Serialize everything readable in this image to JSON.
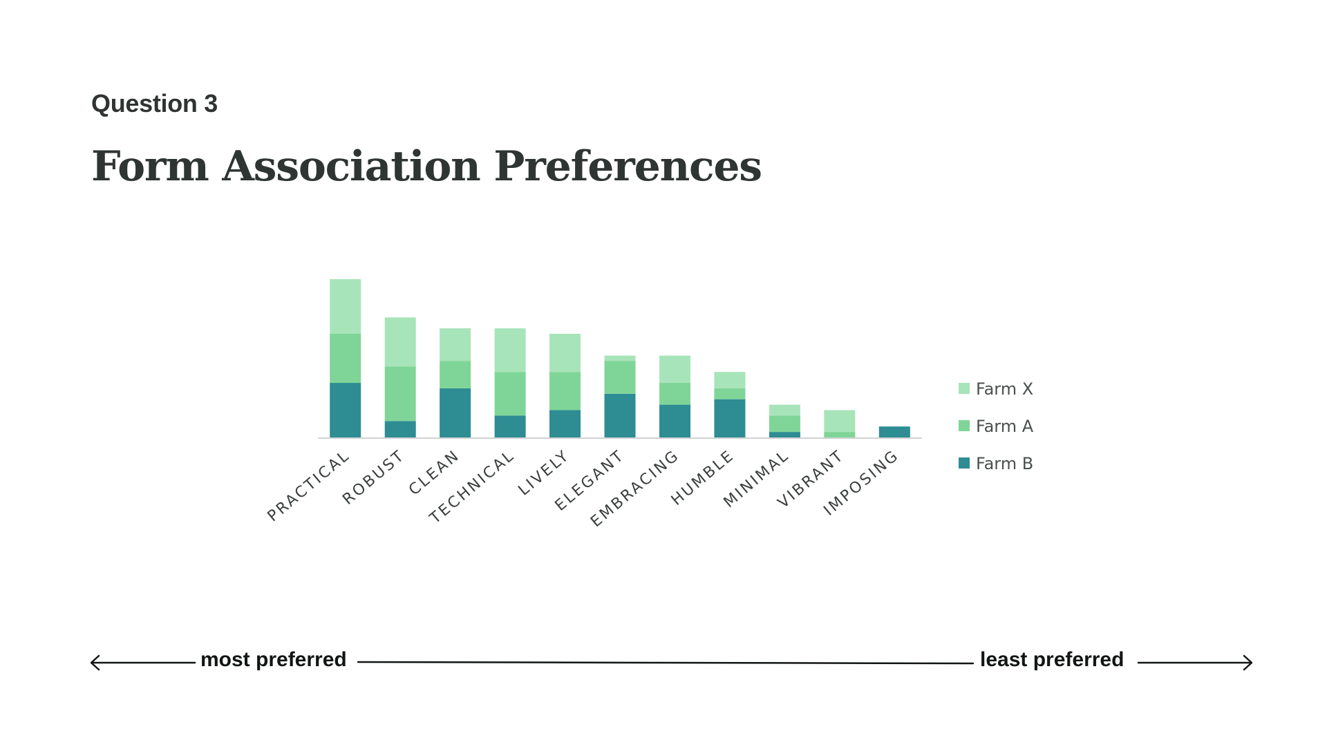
{
  "header": {
    "eyebrow": "Question 3",
    "title": "Form Association Preferences"
  },
  "scale": {
    "left_label": "most preferred",
    "right_label": "least preferred"
  },
  "colors": {
    "farm_x": "#a8e4b9",
    "farm_a": "#7fd597",
    "farm_b": "#2e8c93",
    "axis": "#cfd3d1"
  },
  "chart_data": {
    "type": "bar",
    "stacked": true,
    "categories": [
      "PRACTICAL",
      "ROBUST",
      "CLEAN",
      "TECHNICAL",
      "LIVELY",
      "ELEGANT",
      "EMBRACING",
      "HUMBLE",
      "MINIMAL",
      "VIBRANT",
      "IMPOSING"
    ],
    "series": [
      {
        "name": "Farm B",
        "color": "#2e8c93",
        "values": [
          10,
          3,
          9,
          4,
          5,
          8,
          6,
          7,
          1,
          0,
          2
        ]
      },
      {
        "name": "Farm A",
        "color": "#7fd597",
        "values": [
          9,
          10,
          5,
          8,
          7,
          6,
          4,
          2,
          3,
          1,
          0
        ]
      },
      {
        "name": "Farm X",
        "color": "#a8e4b9",
        "values": [
          10,
          9,
          6,
          8,
          7,
          1,
          5,
          3,
          2,
          4,
          0
        ]
      }
    ],
    "legend": [
      "Farm X",
      "Farm A",
      "Farm B"
    ],
    "legend_position": "right",
    "ylim": [
      0,
      30
    ],
    "grid": false,
    "xlabel": "",
    "ylabel": ""
  }
}
